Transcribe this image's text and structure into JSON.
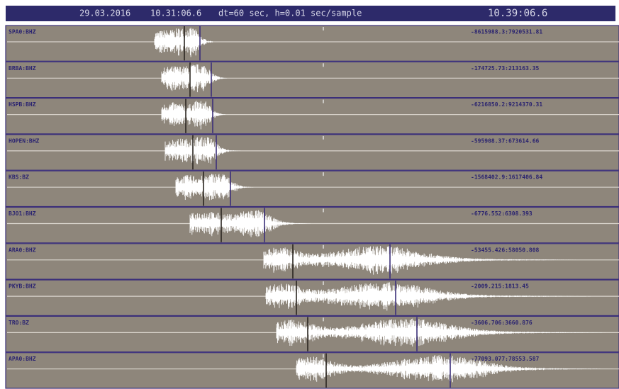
{
  "header": {
    "date": "29.03.2016",
    "start_time": "10.31:06.6",
    "params": "dt=60 sec, h=0.01 sec/sample",
    "end_time": "10.39:06.6"
  },
  "traces": [
    {
      "station": "SPA0:BHZ",
      "range": "-8615988.3:7920531.81"
    },
    {
      "station": "BRBA:BHZ",
      "range": "-174725.73:213163.35"
    },
    {
      "station": "HSPB:BHZ",
      "range": "-6216850.2:9214370.31"
    },
    {
      "station": "HOPEN:BHZ",
      "range": "-595908.37:673614.66"
    },
    {
      "station": "KBS:BZ",
      "range": "-1568402.9:1617406.84"
    },
    {
      "station": "BJO1:BHZ",
      "range": "-6776.552:6308.393"
    },
    {
      "station": "ARA0:BHZ",
      "range": "-53455.426:58050.808"
    },
    {
      "station": "PKYB:BHZ",
      "range": "-2009.215:1813.45"
    },
    {
      "station": "TRO:BZ",
      "range": "-3606.706:3660.876"
    },
    {
      "station": "APA0:BHZ",
      "range": "-77093.077:78553.587"
    }
  ]
}
